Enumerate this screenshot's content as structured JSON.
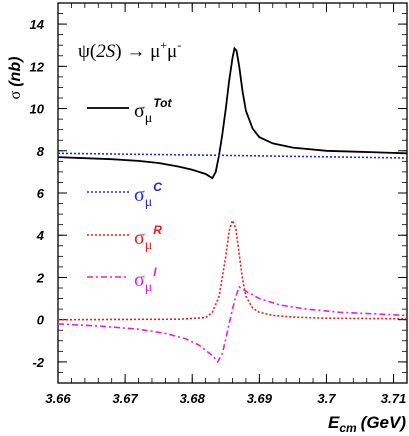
{
  "chart_data": {
    "type": "line",
    "title": "ψ(2S) → μ⁺μ⁻",
    "title_parts": {
      "psi": "ψ(",
      "state": "2S",
      "close": ")",
      "arrow": " → ",
      "mu1": "μ",
      "sup1": "+",
      "mu2": "μ",
      "sup2": "-"
    },
    "ylabel": "σ (nb)",
    "ylabel_parts": {
      "sigma": "σ",
      "unit": "(nb)"
    },
    "xlabel": "E_cm (GeV)",
    "xlabel_parts": {
      "main": "E",
      "sub": "cm",
      "unit": "(GeV)"
    },
    "xlim": [
      3.66,
      3.712
    ],
    "ylim": [
      -3,
      15
    ],
    "xticks": [
      "3.66",
      "3.67",
      "3.68",
      "3.69",
      "3.7",
      "3.71"
    ],
    "xtick_values": [
      3.66,
      3.67,
      3.68,
      3.69,
      3.7,
      3.71
    ],
    "yticks": [
      "-2",
      "0",
      "2",
      "4",
      "6",
      "8",
      "10",
      "12",
      "14"
    ],
    "ytick_values": [
      -2,
      0,
      2,
      4,
      6,
      8,
      10,
      12,
      14
    ],
    "grid": false,
    "legend_placement": "left",
    "series": [
      {
        "key": "tot",
        "symbol": "σ",
        "sub": "μ",
        "sup": "Tot",
        "color": "#000000",
        "style": "solid",
        "x": [
          3.66,
          3.664,
          3.668,
          3.672,
          3.675,
          3.678,
          3.68,
          3.682,
          3.683,
          3.6835,
          3.684,
          3.6845,
          3.685,
          3.6855,
          3.686,
          3.6863,
          3.6866,
          3.687,
          3.6875,
          3.688,
          3.689,
          3.69,
          3.692,
          3.695,
          3.7,
          3.705,
          3.712
        ],
        "y": [
          7.7,
          7.65,
          7.6,
          7.52,
          7.42,
          7.25,
          7.1,
          6.9,
          6.7,
          7.0,
          7.8,
          8.8,
          10.0,
          11.3,
          12.4,
          12.85,
          12.75,
          12.0,
          10.8,
          9.9,
          9.05,
          8.65,
          8.35,
          8.15,
          8.0,
          7.95,
          7.88
        ]
      },
      {
        "key": "c",
        "symbol": "σ",
        "sub": "μ",
        "sup": "C",
        "color": "#1f2bd6",
        "style": "dotted",
        "x": [
          3.66,
          3.685,
          3.712
        ],
        "y": [
          7.88,
          7.78,
          7.66
        ]
      },
      {
        "key": "r",
        "symbol": "σ",
        "sub": "μ",
        "sup": "R",
        "color": "#e0201a",
        "style": "dotted",
        "x": [
          3.66,
          3.678,
          3.682,
          3.683,
          3.684,
          3.685,
          3.6855,
          3.686,
          3.6865,
          3.687,
          3.6875,
          3.688,
          3.689,
          3.69,
          3.692,
          3.695,
          3.7,
          3.712
        ],
        "y": [
          0.0,
          0.02,
          0.1,
          0.35,
          1.1,
          3.0,
          4.2,
          4.7,
          4.3,
          3.1,
          1.9,
          1.1,
          0.55,
          0.35,
          0.2,
          0.12,
          0.07,
          0.04
        ]
      },
      {
        "key": "i",
        "symbol": "σ",
        "sub": "μ",
        "sup": "I",
        "color": "#e020e0",
        "style": "dashdot",
        "x": [
          3.66,
          3.666,
          3.672,
          3.676,
          3.679,
          3.681,
          3.683,
          3.6838,
          3.6845,
          3.685,
          3.6855,
          3.686,
          3.6865,
          3.687,
          3.688,
          3.69,
          3.693,
          3.697,
          3.702,
          3.712
        ],
        "y": [
          -0.2,
          -0.3,
          -0.45,
          -0.65,
          -0.9,
          -1.2,
          -1.7,
          -2.0,
          -1.6,
          -0.9,
          -0.2,
          0.5,
          1.1,
          1.55,
          1.35,
          1.0,
          0.7,
          0.5,
          0.35,
          0.2
        ]
      }
    ]
  }
}
